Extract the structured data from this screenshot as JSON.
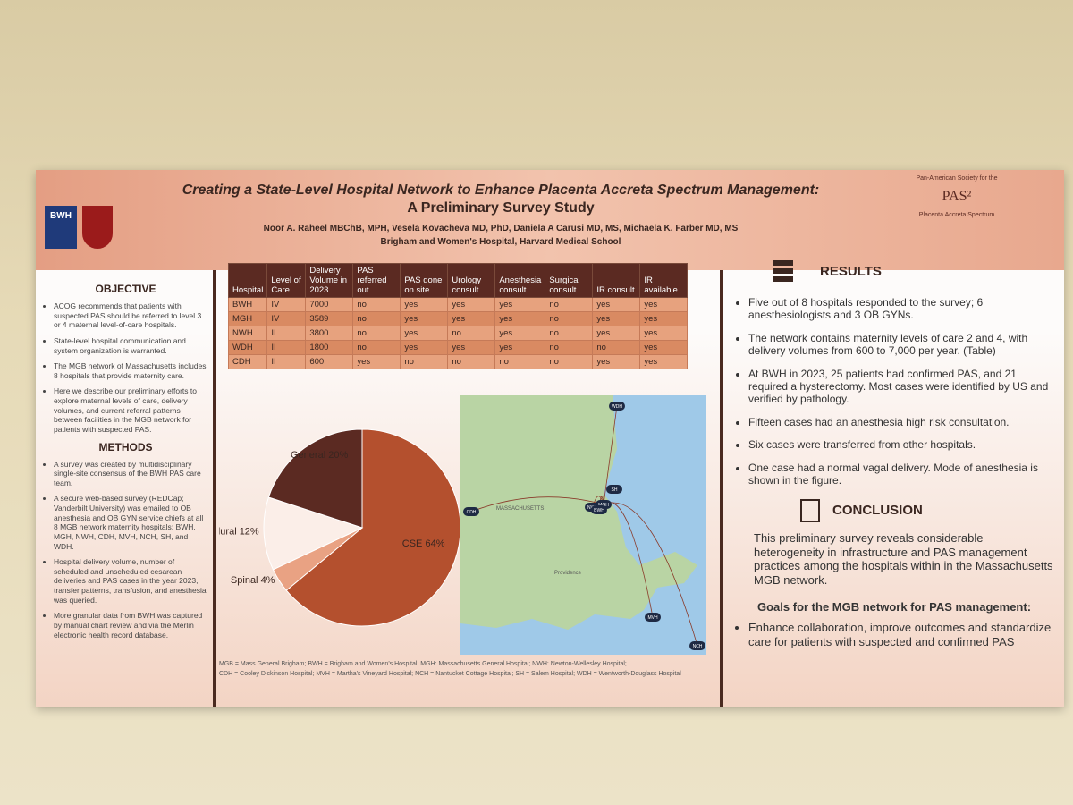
{
  "header": {
    "title_line1": "Creating a State-Level Hospital Network to Enhance Placenta Accreta Spectrum Management:",
    "title_line2": "A Preliminary Survey Study",
    "authors": "Noor A. Raheel MBChB, MPH, Vesela Kovacheva MD, PhD, Daniela A Carusi MD, MS, Michaela K. Farber MD, MS",
    "affiliation": "Brigham and Women's Hospital, Harvard Medical School",
    "logo": "BWH",
    "society_top": "Pan-American Society for the",
    "society_mark": "PAS²",
    "society_bottom": "Placenta Accreta Spectrum"
  },
  "objective": {
    "heading": "OBJECTIVE",
    "bullets": [
      "ACOG recommends that patients with suspected PAS should be referred to level 3 or 4 maternal level-of-care hospitals.",
      "State-level hospital communication and system organization is warranted.",
      "The MGB network of Massachusetts includes 8 hospitals that provide maternity care.",
      "Here we describe our preliminary efforts to explore maternal levels of care, delivery volumes, and current referral patterns between facilities in the MGB network for patients with suspected PAS."
    ]
  },
  "methods": {
    "heading": "METHODS",
    "bullets": [
      "A survey was created by multidisciplinary single-site consensus of the BWH PAS care team.",
      "A secure web-based survey (REDCap; Vanderbilt University) was emailed to OB anesthesia and OB GYN service chiefs at all 8 MGB network maternity hospitals: BWH, MGH, NWH, CDH, MVH, NCH, SH, and WDH.",
      "Hospital delivery volume, number of scheduled and unscheduled cesarean deliveries and PAS cases in the year 2023, transfer patterns, transfusion, and anesthesia was queried.",
      "More granular data from BWH was captured by manual chart review and via the Merlin electronic health record database."
    ]
  },
  "table": {
    "headers": [
      "Hospital",
      "Level of Care",
      "Delivery Volume in 2023",
      "PAS referred out",
      "PAS done on site",
      "Urology consult",
      "Anesthesia consult",
      "Surgical consult",
      "IR consult",
      "IR available"
    ],
    "rows": [
      [
        "BWH",
        "IV",
        "7000",
        "no",
        "yes",
        "yes",
        "yes",
        "no",
        "yes",
        "yes"
      ],
      [
        "MGH",
        "IV",
        "3589",
        "no",
        "yes",
        "yes",
        "yes",
        "no",
        "yes",
        "yes"
      ],
      [
        "NWH",
        "II",
        "3800",
        "no",
        "yes",
        "no",
        "yes",
        "no",
        "yes",
        "yes"
      ],
      [
        "WDH",
        "II",
        "1800",
        "no",
        "yes",
        "yes",
        "yes",
        "no",
        "no",
        "yes"
      ],
      [
        "CDH",
        "II",
        "600",
        "yes",
        "no",
        "no",
        "no",
        "no",
        "yes",
        "yes"
      ]
    ]
  },
  "pie": {
    "type": "pie",
    "categories": [
      "CSE",
      "Spinal",
      "Epidural",
      "General"
    ],
    "values": [
      64,
      4,
      12,
      20
    ],
    "value_labels": [
      "64%",
      "4%",
      "12%",
      "20%"
    ],
    "colors": [
      "#b4502e",
      "#e9a283",
      "#fbeee8",
      "#5b2a22"
    ]
  },
  "map": {
    "state_label": "MASSACHUSETTS",
    "city_label": "Providence",
    "markers": [
      "WDH",
      "SH",
      "CDH",
      "NWH",
      "MGH",
      "BWH",
      "MVH",
      "NCH"
    ]
  },
  "footnote": [
    "MGB = Mass General Brigham; BWH = Brigham and Women's Hospital; MGH: Massachusetts General Hospital; NWH: Newton-Wellesley Hospital;",
    "CDH = Cooley Dickinson Hospital; MVH = Martha's Vineyard Hospital; NCH = Nantucket Cottage Hospital; SH = Salem Hospital; WDH = Wentworth-Douglass Hospital"
  ],
  "results": {
    "heading": "RESULTS",
    "bullets": [
      "Five out of 8 hospitals responded to the survey; 6 anesthesiologists and 3 OB GYNs.",
      "The network contains maternity levels of care 2 and 4, with delivery volumes  from 600 to 7,000 per year.  (Table)",
      "At BWH in 2023, 25 patients had confirmed PAS, and 21 required a hysterectomy. Most cases were identified by US and verified by pathology.",
      "Fifteen cases had an anesthesia high risk consultation.",
      "Six cases were transferred from other hospitals.",
      "One case had a normal vagal delivery. Mode of anesthesia is shown in the figure."
    ]
  },
  "conclusion": {
    "heading": "CONCLUSION",
    "text": "This preliminary survey reveals considerable heterogeneity in infrastructure and PAS management practices among the hospitals within in the Massachusetts MGB network.",
    "goals_heading": "Goals for the MGB network for PAS management:",
    "goals": [
      "Enhance collaboration, improve outcomes and standardize care for patients with suspected and confirmed PAS"
    ]
  }
}
